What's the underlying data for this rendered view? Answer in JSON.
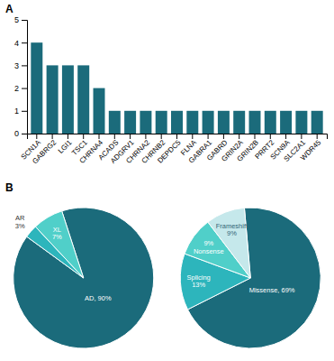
{
  "chart_data": [
    {
      "type": "bar",
      "title": "A",
      "categories": [
        "SCN1A",
        "GABRG2",
        "LGI1",
        "TSC1",
        "CHRNA4",
        "ACADS",
        "ADGRV1",
        "CHRNA2",
        "CHRNB2",
        "DEPDC5",
        "FLNA",
        "GABRA1",
        "GABRD",
        "GRIN2A",
        "GRIN2B",
        "PRRT2",
        "SCN9A",
        "SLC2A1",
        "WDR45"
      ],
      "values": [
        4,
        3,
        3,
        3,
        2,
        1,
        1,
        1,
        1,
        1,
        1,
        1,
        1,
        1,
        1,
        1,
        1,
        1,
        1
      ],
      "color": "#1b6b7b",
      "ylim": [
        0,
        5
      ],
      "yticks": [
        0,
        1,
        2,
        3,
        4,
        5
      ],
      "grid": false
    },
    {
      "type": "pie",
      "title": "B",
      "values": [
        90,
        3,
        7
      ],
      "value_labels": [
        "AD, 90%",
        "AR\n3%",
        "XL\n7%"
      ],
      "colors": [
        "#1b6b7b",
        "#2db5bc",
        "#50cfc9"
      ],
      "data_labels": true
    },
    {
      "type": "pie",
      "values": [
        69,
        13,
        9,
        9
      ],
      "value_labels": [
        "Missense, 69%",
        "Splicing\n13%",
        "9%\nNonsense",
        "Frameshift\n9%"
      ],
      "colors": [
        "#1b6b7b",
        "#2db5bc",
        "#50cfc9",
        "#c5e8eb"
      ],
      "data_labels": true
    }
  ]
}
